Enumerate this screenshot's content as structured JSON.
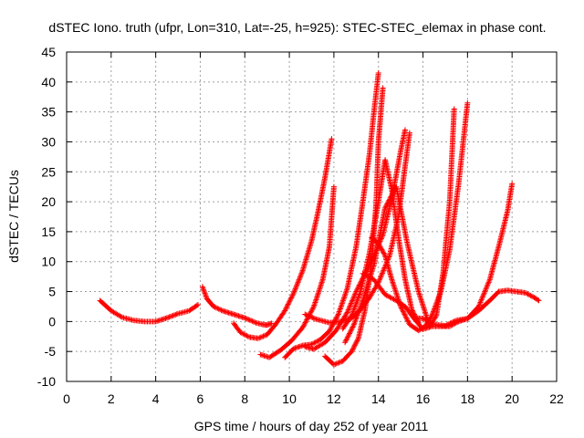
{
  "chart_data": {
    "type": "scatter",
    "title": "dSTEC Iono. truth (ufpr, Lon=310, Lat=-25, h=925): STEC-STEC_elemax in phase cont.",
    "xlabel": "GPS time / hours of day 252 of year 2011",
    "ylabel": "dSTEC  / TECUs",
    "xlim": [
      0,
      22
    ],
    "ylim": [
      -10,
      45
    ],
    "x_ticks": [
      "0",
      "2",
      "4",
      "6",
      "8",
      "10",
      "12",
      "14",
      "16",
      "18",
      "20",
      "22"
    ],
    "y_ticks": [
      "-10",
      "-5",
      "0",
      "5",
      "10",
      "15",
      "20",
      "25",
      "30",
      "35",
      "40",
      "45"
    ],
    "grid": true,
    "marker": "+",
    "color": "#ff0000",
    "series": [
      {
        "x": [
          1.5,
          2.0,
          2.5,
          3.0,
          3.5,
          4.0,
          4.5,
          5.0,
          5.5,
          5.9
        ],
        "y": [
          3.5,
          1.8,
          0.7,
          0.2,
          0.0,
          0.0,
          0.6,
          1.3,
          1.8,
          2.8
        ]
      },
      {
        "x": [
          6.1,
          6.3,
          6.6,
          7.0,
          7.5,
          8.0,
          8.5,
          8.8,
          9.0,
          9.2
        ],
        "y": [
          5.8,
          3.8,
          2.5,
          1.8,
          1.2,
          0.6,
          -0.2,
          -0.5,
          -0.6,
          -0.3
        ]
      },
      {
        "x": [
          7.5,
          7.8,
          8.2,
          8.6,
          9.0,
          9.4,
          9.8,
          10.2,
          10.6,
          11.0,
          11.3,
          11.6,
          11.9
        ],
        "y": [
          -0.3,
          -1.8,
          -2.6,
          -2.8,
          -2.2,
          -0.4,
          1.8,
          4.8,
          8.5,
          13.5,
          18.5,
          24.0,
          30.5
        ]
      },
      {
        "x": [
          8.7,
          9.1,
          9.6,
          10.1,
          10.6,
          11.1,
          11.5,
          11.8,
          12.0
        ],
        "y": [
          -5.5,
          -6.0,
          -4.8,
          -3.2,
          -1.0,
          2.5,
          7.0,
          12.5,
          22.5
        ]
      },
      {
        "x": [
          9.8,
          10.2,
          10.6,
          11.0,
          11.4,
          11.8,
          12.2,
          12.6,
          13.0,
          13.3,
          13.6,
          13.8,
          14.0
        ],
        "y": [
          -6.0,
          -4.5,
          -4.0,
          -3.8,
          -3.0,
          -1.6,
          1.2,
          5.5,
          12.5,
          20.0,
          28.0,
          35.0,
          41.5
        ]
      },
      {
        "x": [
          11.6,
          12.0,
          12.4,
          12.8,
          13.1,
          13.4,
          13.7,
          13.9,
          14.0,
          14.2
        ],
        "y": [
          -5.8,
          -7.2,
          -6.6,
          -5.0,
          -2.8,
          2.0,
          10.0,
          20.0,
          30.0,
          39.0
        ]
      },
      {
        "x": [
          10.7,
          11.1,
          11.6,
          12.1,
          12.6,
          13.0,
          13.4,
          13.8,
          14.2,
          14.6,
          15.0,
          15.2
        ],
        "y": [
          -4.2,
          -4.6,
          -3.5,
          -1.5,
          1.5,
          5.0,
          8.0,
          11.0,
          14.5,
          20.5,
          28.5,
          32.0
        ]
      },
      {
        "x": [
          10.7,
          11.2,
          11.8,
          12.3,
          12.8,
          13.2,
          13.6,
          14.0,
          14.5,
          14.9,
          15.2,
          15.4
        ],
        "y": [
          1.2,
          0.4,
          -0.2,
          0.0,
          0.6,
          2.0,
          4.0,
          6.5,
          11.0,
          17.5,
          26.0,
          31.5
        ]
      },
      {
        "x": [
          12.4,
          12.8,
          13.2,
          13.6,
          14.0,
          14.3,
          14.6,
          14.9,
          15.2,
          15.5,
          15.8
        ],
        "y": [
          -1.2,
          1.0,
          5.0,
          11.5,
          20.0,
          27.0,
          22.0,
          14.0,
          7.0,
          2.0,
          -0.2
        ]
      },
      {
        "x": [
          12.5,
          12.9,
          13.3,
          13.8,
          14.3,
          14.8,
          15.3,
          15.8,
          16.3,
          16.6,
          16.9,
          17.2,
          17.4
        ],
        "y": [
          -3.5,
          -0.5,
          3.5,
          9.5,
          19.0,
          22.5,
          13.0,
          5.0,
          -0.8,
          1.0,
          8.0,
          20.0,
          35.5
        ]
      },
      {
        "x": [
          13.7,
          14.0,
          14.3,
          14.6,
          15.0,
          15.4,
          15.8,
          16.1,
          16.4,
          16.8,
          17.2,
          17.6,
          18.0
        ],
        "y": [
          14.0,
          13.0,
          11.0,
          7.0,
          2.5,
          -0.5,
          -1.5,
          -0.8,
          1.0,
          5.0,
          12.0,
          23.0,
          36.5
        ]
      },
      {
        "x": [
          13.3,
          13.8,
          14.3,
          14.8,
          15.2,
          15.6,
          16.0,
          16.4,
          16.8,
          17.2,
          17.6,
          18.0,
          18.5,
          19.0,
          19.4,
          19.8,
          20.0
        ],
        "y": [
          8.0,
          7.0,
          4.5,
          3.5,
          2.5,
          0.5,
          -1.3,
          -0.8,
          -0.8,
          -0.8,
          0.0,
          0.5,
          2.5,
          7.0,
          12.5,
          18.5,
          23.0
        ]
      },
      {
        "x": [
          15.6,
          16.0,
          16.5,
          17.0,
          17.5,
          18.0,
          18.5,
          19.0,
          19.4,
          19.8,
          20.2,
          20.6,
          21.0,
          21.2
        ],
        "y": [
          0.6,
          0.5,
          -0.5,
          -0.7,
          0.2,
          0.5,
          1.8,
          3.5,
          5.0,
          5.2,
          5.0,
          4.8,
          4.0,
          3.5
        ]
      }
    ]
  }
}
